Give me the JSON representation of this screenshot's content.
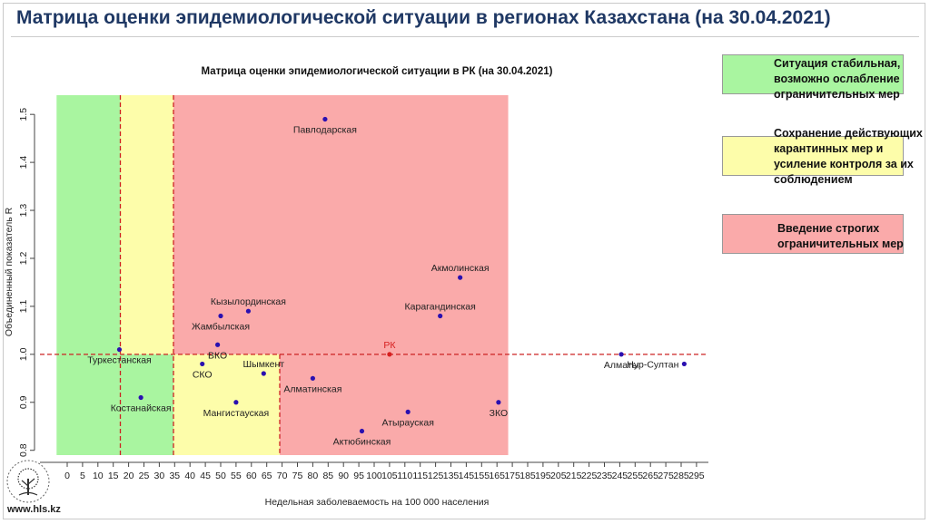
{
  "page": {
    "title": "Матрица оценки эпидемиологической ситуации в регионах Казахстана (на 30.04.2021)",
    "site": "www.hls.kz"
  },
  "legend": [
    {
      "color": "#a9f5a0",
      "text": "Ситуация стабильная, возможно ослабление ограничительных мер"
    },
    {
      "color": "#fdfdaa",
      "text": "Сохранение действующих карантинных мер и усиление контроля за их соблюдением"
    },
    {
      "color": "#faaaaa",
      "text": "Введение строгих ограничительных мер"
    }
  ],
  "chart_data": {
    "type": "scatter",
    "title": "Матрица оценки эпидемиологической ситуации в РК (на 30.04.2021)",
    "xlabel": "Недельная заболеваемость на 100 000 населения",
    "ylabel": "Объединенный показатель R",
    "xlim": [
      -5,
      300
    ],
    "ylim": [
      0.79,
      1.54
    ],
    "xticks": [
      "0",
      "5",
      "10",
      "15",
      "20",
      "25",
      "30",
      "35",
      "40",
      "45",
      "50",
      "55",
      "60",
      "65",
      "70",
      "75",
      "80",
      "85",
      "90",
      "95",
      "100",
      "105",
      "110",
      "115",
      "125",
      "135",
      "145",
      "155",
      "165",
      "175",
      "185",
      "195",
      "205",
      "215",
      "225",
      "235",
      "245",
      "255",
      "265",
      "275",
      "285",
      "295"
    ],
    "yticks": [
      "0.8",
      "0.9",
      "1.0",
      "1.1",
      "1.2",
      "1.3",
      "1.4",
      "1.5"
    ],
    "zones": [
      {
        "label": "green",
        "color": "#a9f5a0",
        "x": [
          -5,
          50
        ],
        "y": [
          0.79,
          1.0
        ]
      },
      {
        "label": "green",
        "color": "#a9f5a0",
        "x": [
          -5,
          25
        ],
        "y": [
          1.0,
          1.54
        ]
      },
      {
        "label": "yellow",
        "color": "#fdfdaa",
        "x": [
          25,
          50
        ],
        "y": [
          1.0,
          1.54
        ]
      },
      {
        "label": "yellow",
        "color": "#fdfdaa",
        "x": [
          50,
          100
        ],
        "y": [
          0.79,
          1.0
        ]
      },
      {
        "label": "red",
        "color": "#faaaaa",
        "x": [
          50,
          300
        ],
        "y": [
          1.0,
          1.54
        ]
      },
      {
        "label": "red",
        "color": "#faaaaa",
        "x": [
          100,
          300
        ],
        "y": [
          0.79,
          1.0
        ]
      }
    ],
    "thresholds": {
      "x": [
        25,
        50,
        100
      ],
      "y": 1.0
    },
    "points": [
      {
        "name": "Павлодарская",
        "x": 84,
        "y": 1.49,
        "anchor": "below"
      },
      {
        "name": "Акмолинская",
        "x": 141,
        "y": 1.16,
        "anchor": "above"
      },
      {
        "name": "Кызылординская",
        "x": 59,
        "y": 1.09,
        "anchor": "above"
      },
      {
        "name": "Карагандинская",
        "x": 128,
        "y": 1.08,
        "anchor": "above"
      },
      {
        "name": "Жамбылская",
        "x": 50,
        "y": 1.08,
        "anchor": "below"
      },
      {
        "name": "ВКО",
        "x": 49,
        "y": 1.02,
        "anchor": "below"
      },
      {
        "name": "Туркестанская",
        "x": 17,
        "y": 1.01,
        "anchor": "below"
      },
      {
        "name": "РК",
        "x": 105,
        "y": 1.0,
        "anchor": "above",
        "highlight": true
      },
      {
        "name": "Алматы",
        "x": 246,
        "y": 1.0,
        "anchor": "below"
      },
      {
        "name": "Нур-Султан",
        "x": 287,
        "y": 0.98,
        "anchor": "left"
      },
      {
        "name": "СКО",
        "x": 44,
        "y": 0.98,
        "anchor": "below"
      },
      {
        "name": "Шымкент",
        "x": 64,
        "y": 0.96,
        "anchor": "above"
      },
      {
        "name": "Алматинская",
        "x": 80,
        "y": 0.95,
        "anchor": "below"
      },
      {
        "name": "Костанайская",
        "x": 24,
        "y": 0.91,
        "anchor": "below"
      },
      {
        "name": "Мангистауская",
        "x": 55,
        "y": 0.9,
        "anchor": "below"
      },
      {
        "name": "ЗКО",
        "x": 166,
        "y": 0.9,
        "anchor": "below"
      },
      {
        "name": "Атырауская",
        "x": 111,
        "y": 0.88,
        "anchor": "below"
      },
      {
        "name": "Актюбинская",
        "x": 96,
        "y": 0.84,
        "anchor": "below"
      }
    ]
  }
}
